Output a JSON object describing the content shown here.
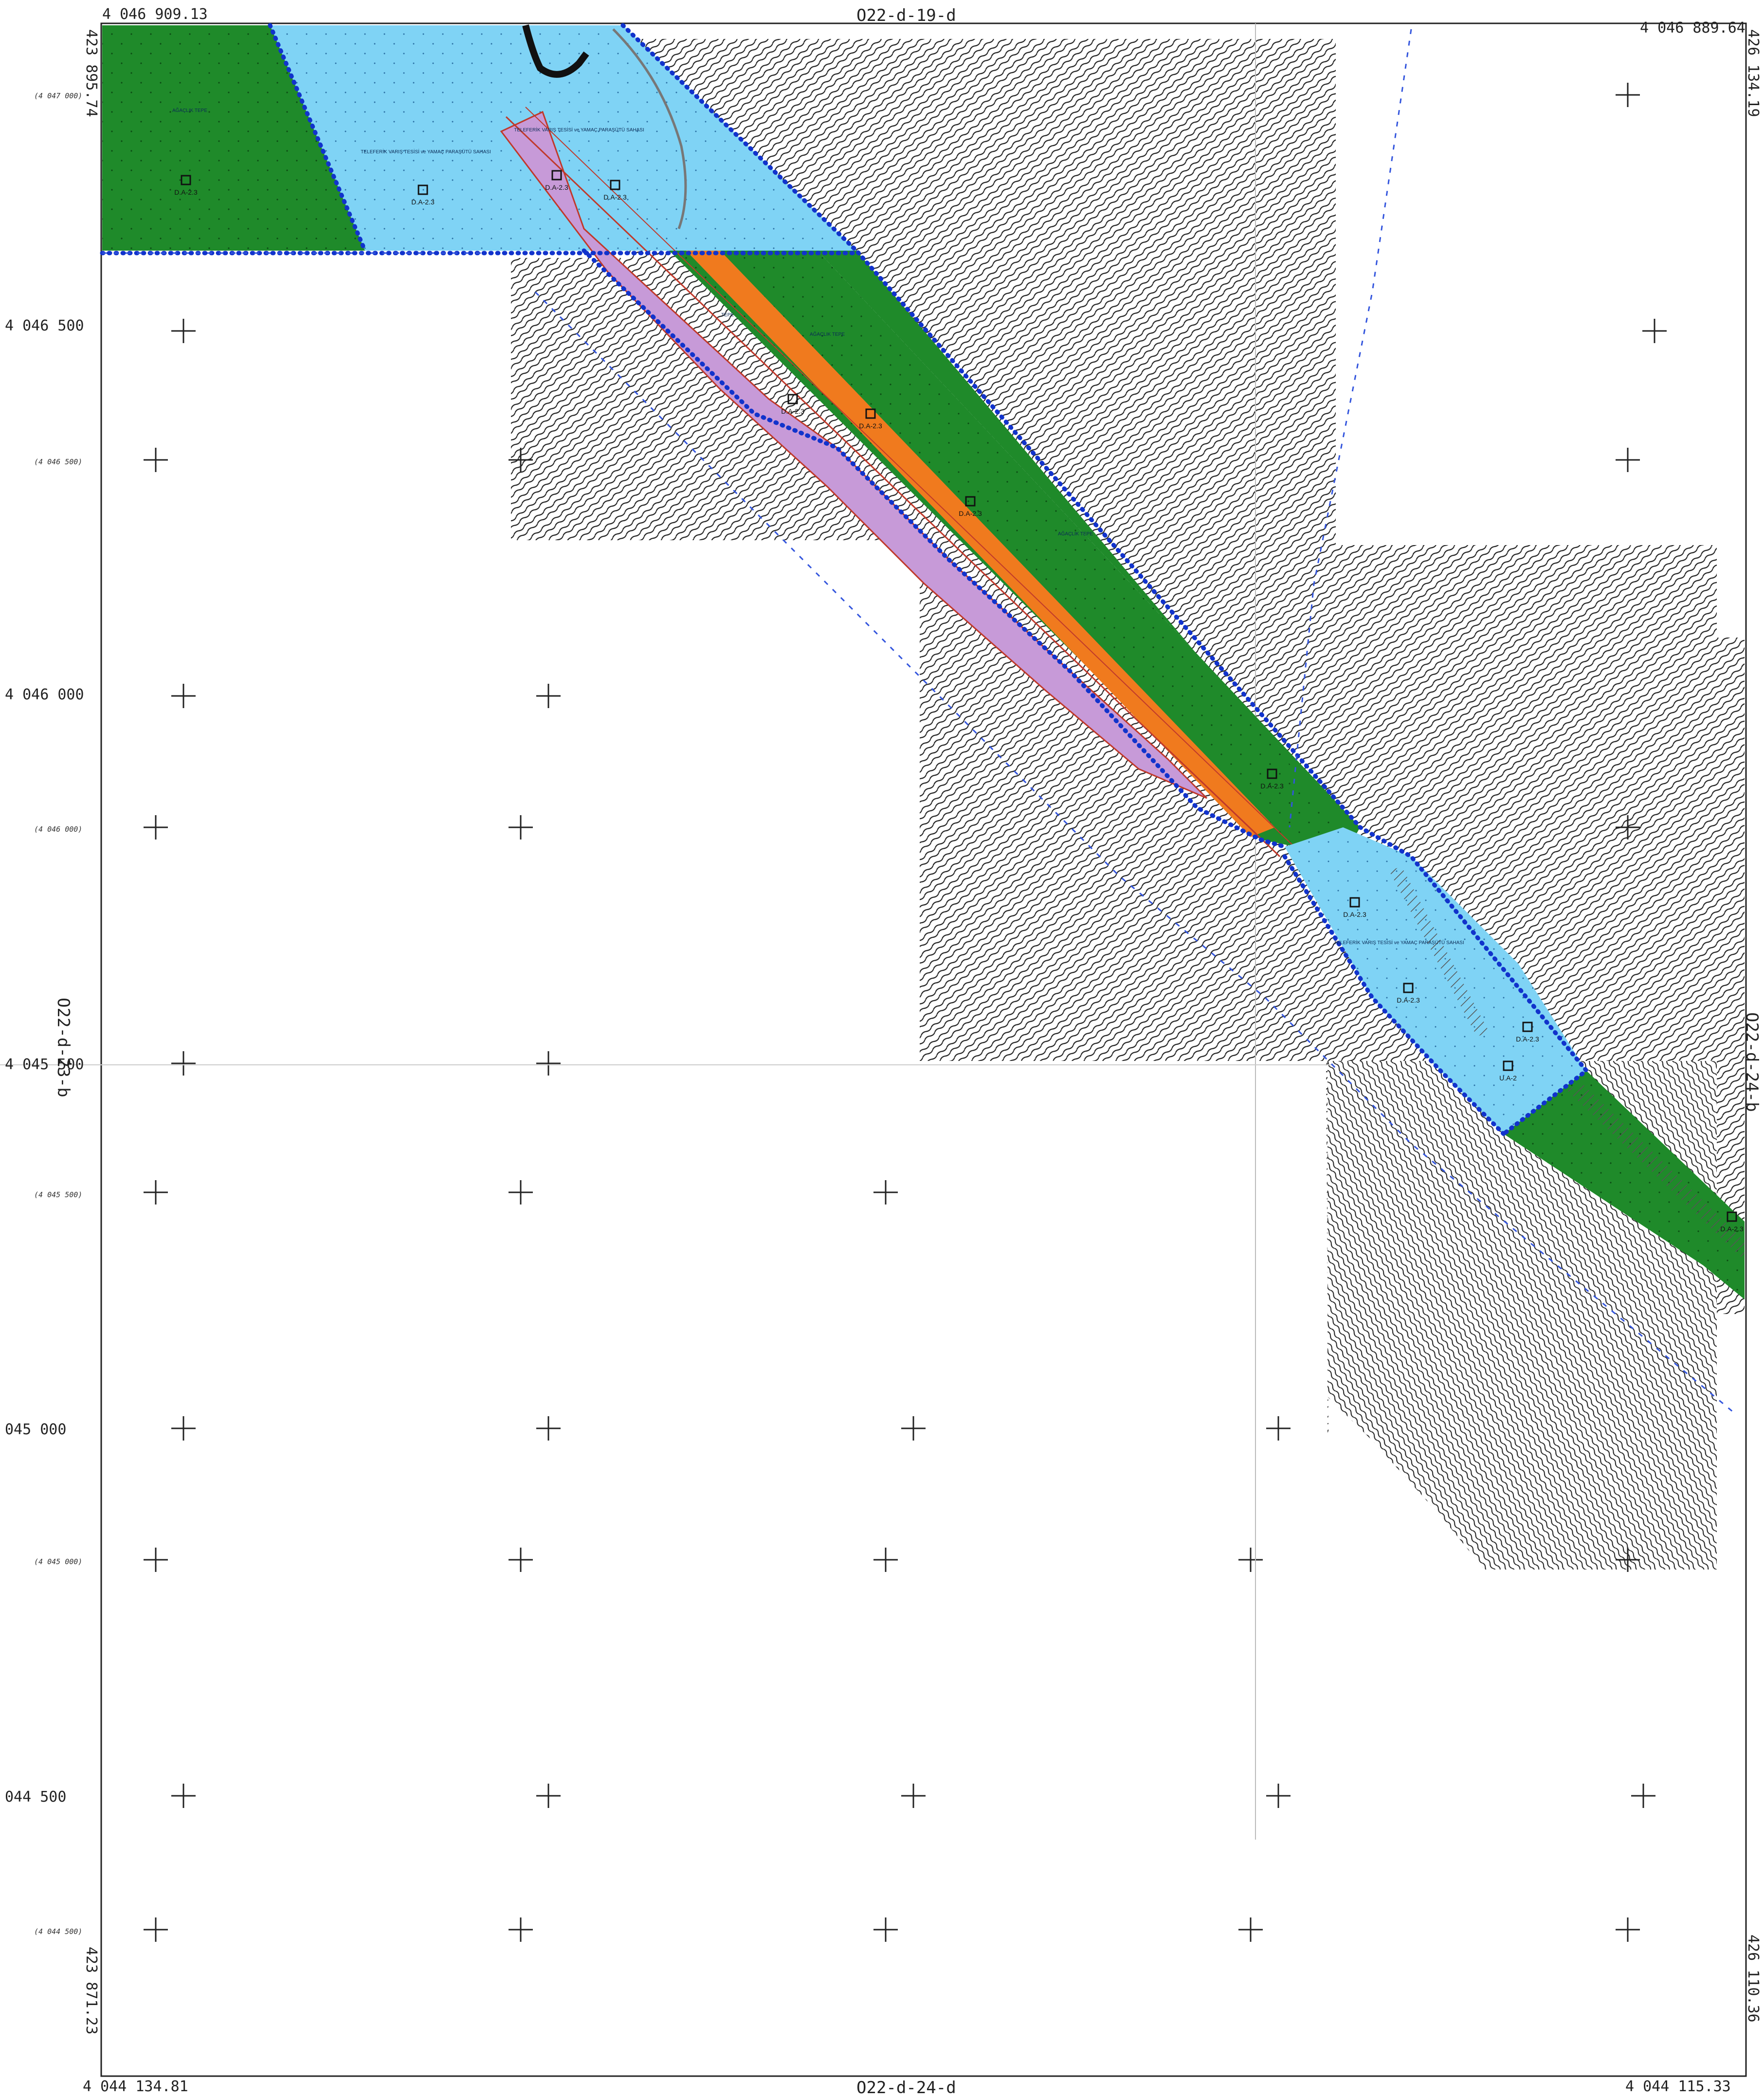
{
  "sheet": {
    "top_center": "O22-d-19-d",
    "bottom_center": "O22-d-24-d",
    "left_side": "O22-d-23-b",
    "right_side": "O22-d-24-b"
  },
  "corners": {
    "top_left_northing": "4 046 909.13",
    "top_left_easting": "423 895.74",
    "top_right_northing": "4 046 889.64",
    "top_right_easting": "426 134.19",
    "bottom_left_northing": "4 044 134.81",
    "bottom_left_easting": "423 871.23",
    "bottom_right_northing": "4 044 115.33",
    "bottom_right_easting": "426 110.36"
  },
  "grid_labels_left": [
    "4 046 500",
    "4 046 000",
    "4 045 500",
    "045 000",
    "044 500"
  ],
  "grid_labels_small": [
    "(4 047 000)",
    "(4 046 500)",
    "(4 046 000)",
    "(4 045 500)",
    "(4 045 000)",
    "(4 044 500)"
  ],
  "zones": {
    "top_blue_title": "TELEFERİK VARIŞ TESİSİ ve YAMAÇ PARAŞÜTÜ SAHASI",
    "bottom_blue_title": "TELEFERİK VARIŞ TESİSİ ve YAMAÇ PARAŞÜTÜ SAHASI",
    "green_label": "AĞAÇLIK TEPE",
    "road_label": "TEPE"
  },
  "markers": [
    "D.A-2.3",
    "D.A-2.3",
    "D.A-2.3",
    "D.A-2.3",
    "D.A-2.3",
    "D.A-2.3",
    "D.A-2.3",
    "D.A-2.3",
    "D.A-2.3",
    "U.A-2",
    "D.A-2.3",
    "D.A-2.3",
    "D.A-2.3"
  ],
  "colors": {
    "green_zone": "#1f8a2a",
    "blue_zone": "#7fd3f5",
    "purple_zone": "#c79ad8",
    "orange_road": "#f07a1e",
    "boundary": "#1133cc",
    "contour": "#222222"
  }
}
